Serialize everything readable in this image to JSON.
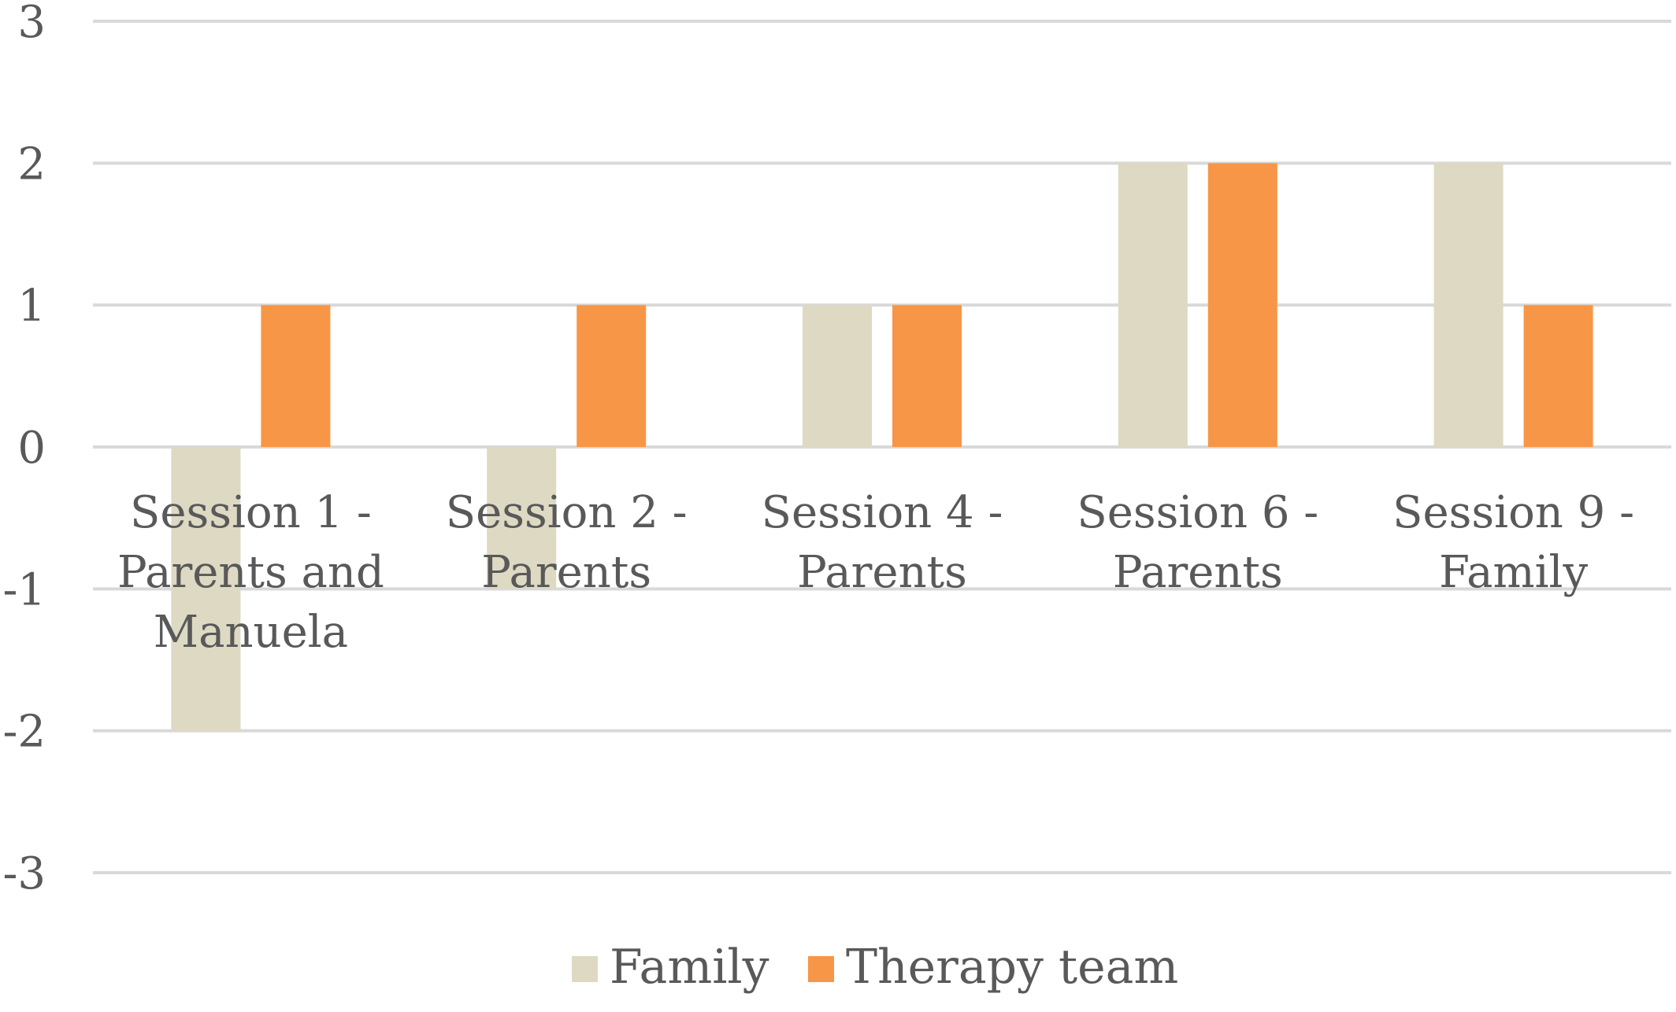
{
  "chart_data": {
    "type": "bar",
    "categories": [
      [
        "Session 1 -",
        "Parents and",
        "Manuela"
      ],
      [
        "Session 2 -",
        "Parents"
      ],
      [
        "Session 4 -",
        "Parents"
      ],
      [
        "Session 6 -",
        "Parents"
      ],
      [
        "Session 9 -",
        "Family"
      ]
    ],
    "series": [
      {
        "name": "Family",
        "values": [
          -2,
          -1,
          1,
          2,
          2
        ],
        "color": "#ddd9c3"
      },
      {
        "name": "Therapy team",
        "values": [
          1,
          1,
          1,
          2,
          1
        ],
        "color": "#f79646"
      }
    ],
    "ylim": [
      -3,
      3
    ],
    "yticks": [
      3,
      2,
      1,
      0,
      -1,
      -2,
      -3
    ],
    "grid": true,
    "legend": "bottom"
  }
}
